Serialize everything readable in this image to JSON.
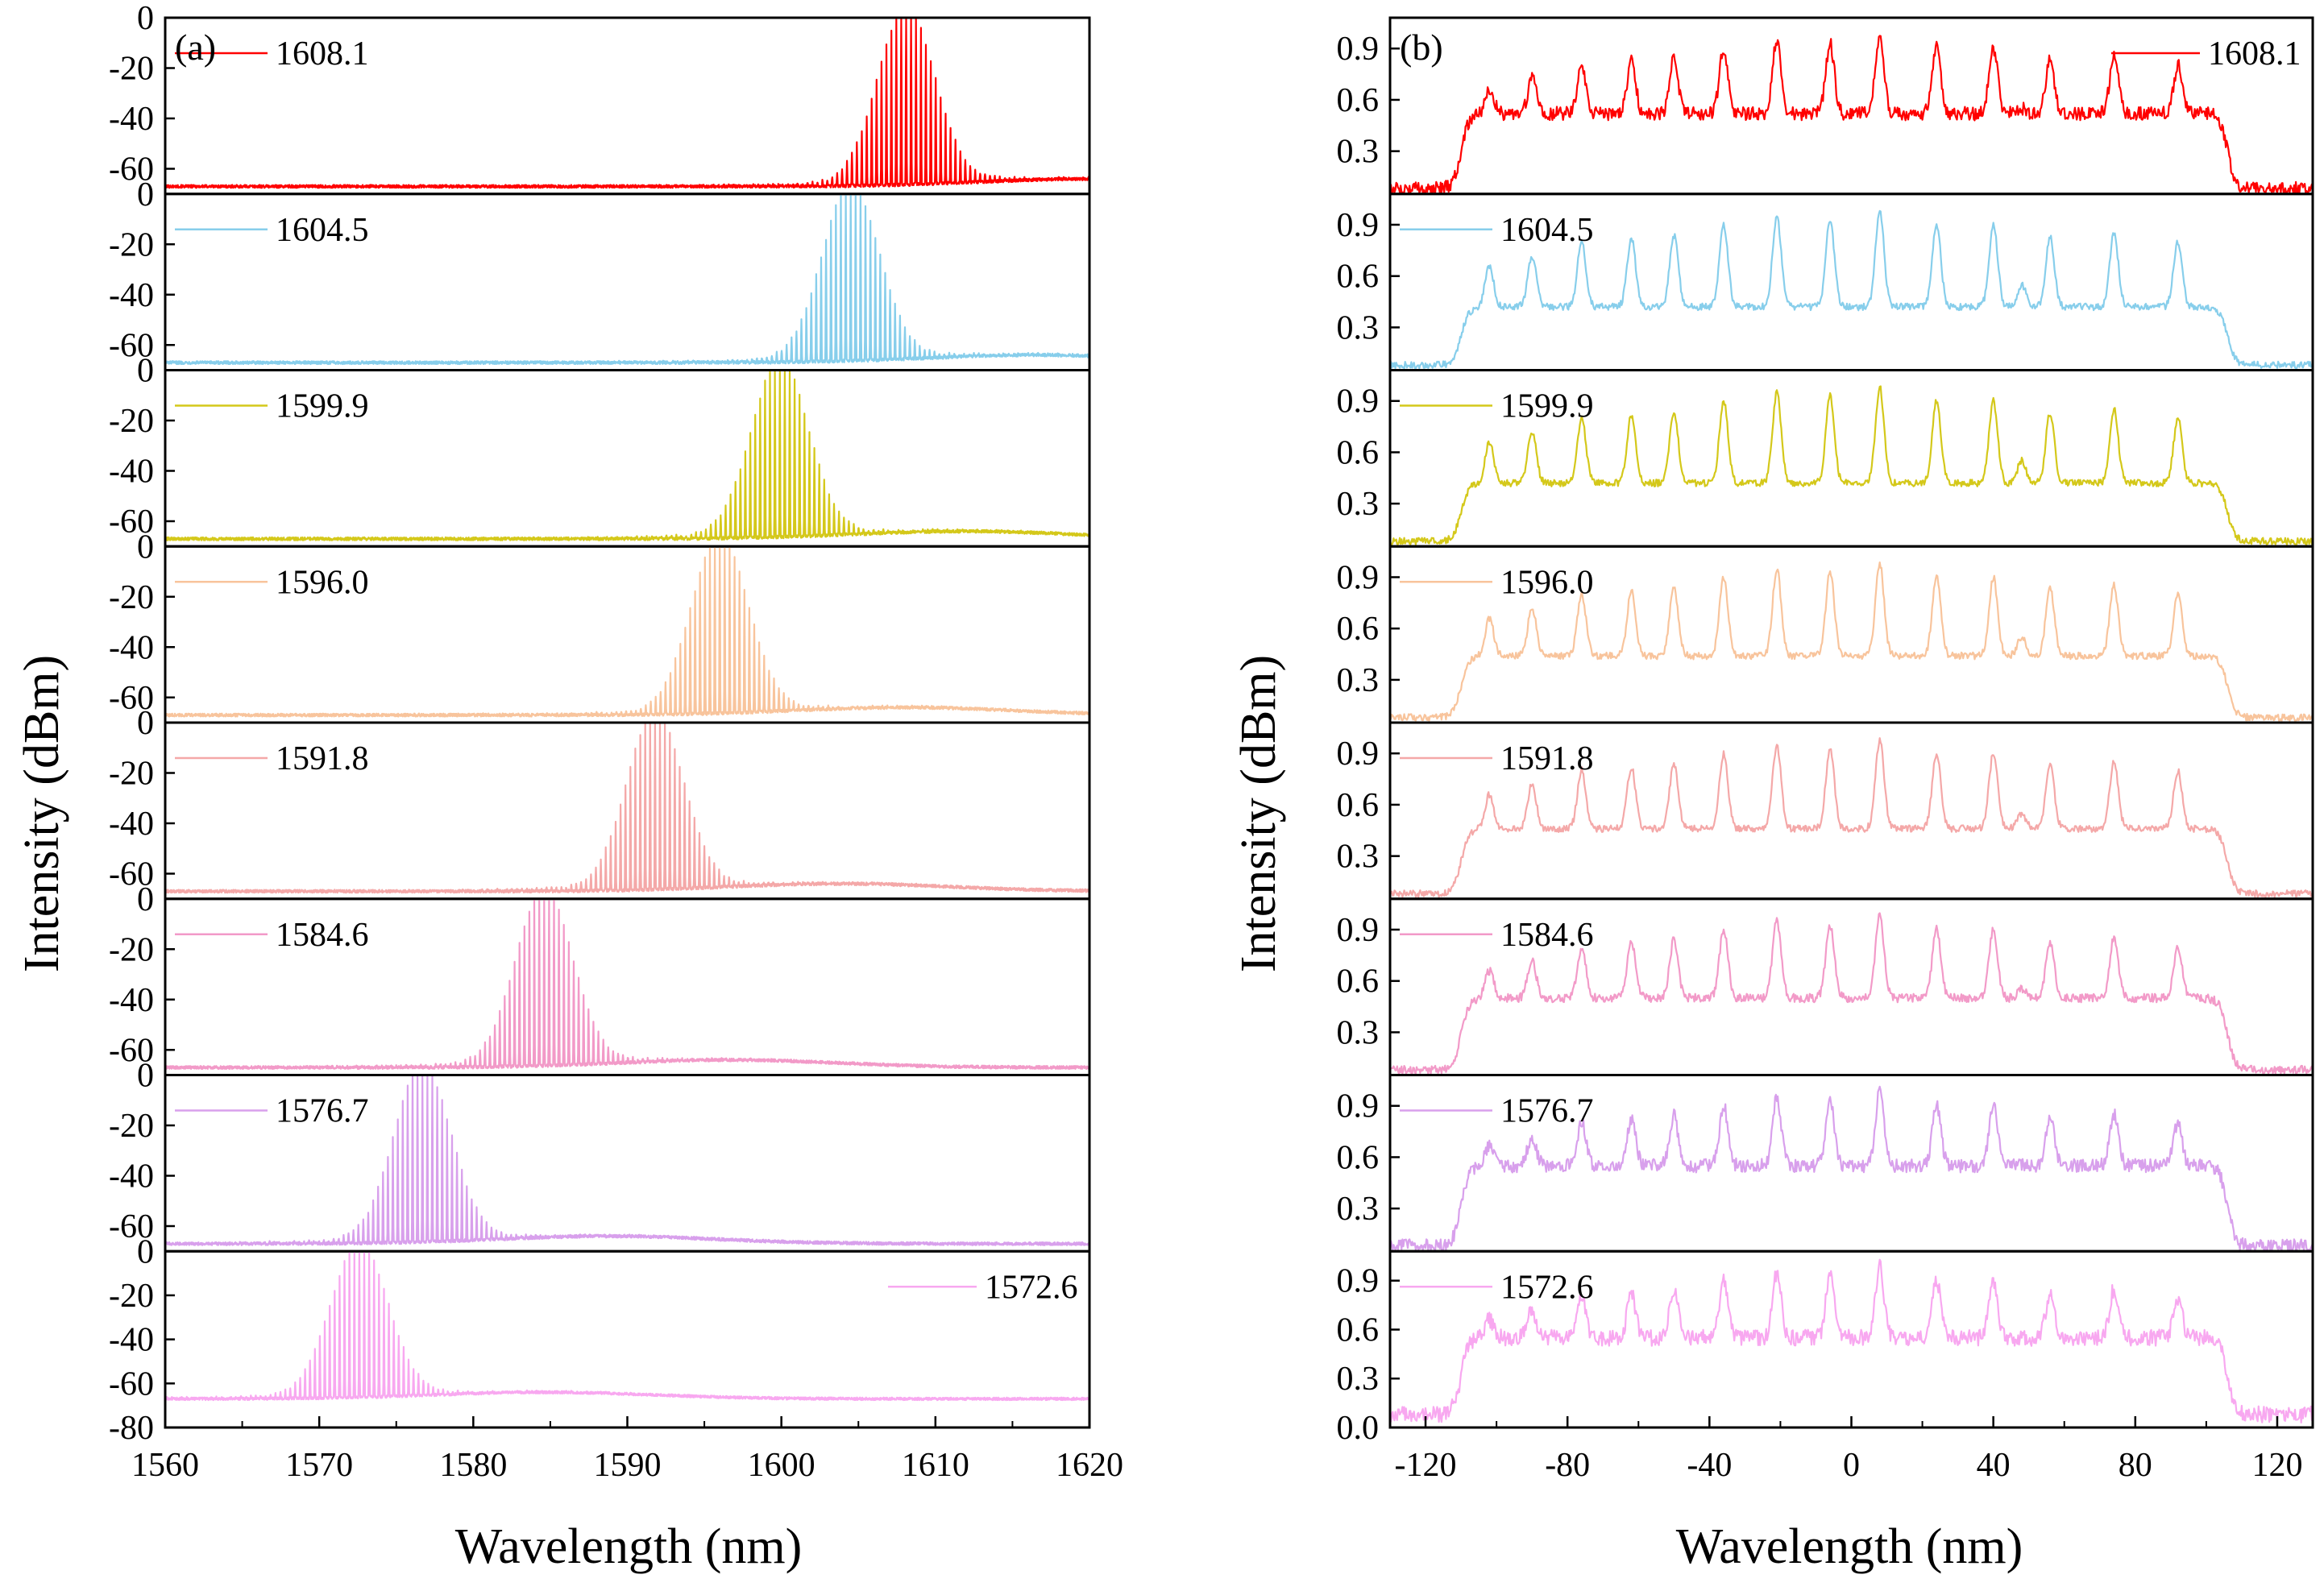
{
  "chart_data": [
    {
      "type": "line",
      "panel_label": "(a)",
      "xlabel": "Wavelength (nm)",
      "ylabel": "Intensity (dBm)",
      "xlim": [
        1560,
        1620
      ],
      "xticks": [
        "1560",
        "1570",
        "1580",
        "1590",
        "1600",
        "1610",
        "1620"
      ],
      "xtick_values": [
        1560,
        1570,
        1580,
        1590,
        1600,
        1610,
        1620
      ],
      "ylim": [
        -70,
        0
      ],
      "bottom_ylim": [
        -80,
        0
      ],
      "yticks": [
        "0",
        "-20",
        "-40",
        "-60"
      ],
      "bottom_yticks": [
        "0",
        "-20",
        "-40",
        "-60",
        "-80"
      ],
      "ytick_values": [
        0,
        -20,
        -40,
        -60
      ],
      "bottom_ytick_values": [
        0,
        -20,
        -40,
        -60,
        -80
      ],
      "comb_spacing_nm": 0.32,
      "envelope_width_nm": 2.6,
      "floor_dbm": -67,
      "series": [
        {
          "name": "1608.1",
          "center": 1608.1,
          "color": "#ff0000",
          "legend_pos": "top-left"
        },
        {
          "name": "1604.5",
          "center": 1604.5,
          "color": "#87ceeb",
          "legend_pos": "top-left"
        },
        {
          "name": "1599.9",
          "center": 1599.9,
          "color": "#d4c81a",
          "legend_pos": "top-left"
        },
        {
          "name": "1596.0",
          "center": 1596.0,
          "color": "#f8c49c",
          "legend_pos": "top-left"
        },
        {
          "name": "1591.8",
          "center": 1591.8,
          "color": "#f4a8a8",
          "legend_pos": "top-left"
        },
        {
          "name": "1584.6",
          "center": 1584.6,
          "color": "#f29ac8",
          "legend_pos": "top-left"
        },
        {
          "name": "1576.7",
          "center": 1576.7,
          "color": "#d8a0ec",
          "legend_pos": "top-left"
        },
        {
          "name": "1572.6",
          "center": 1572.6,
          "color": "#f8a8f0",
          "legend_pos": "top-right"
        }
      ]
    },
    {
      "type": "line",
      "panel_label": "(b)",
      "xlabel": "Wavelength (nm)",
      "ylabel": "Intensity (dBm)",
      "xlim": [
        -130,
        130
      ],
      "xticks": [
        "-120",
        "-80",
        "-40",
        "0",
        "40",
        "80",
        "120"
      ],
      "xtick_values": [
        -120,
        -80,
        -40,
        0,
        40,
        80,
        120
      ],
      "ylim": [
        0.05,
        1.08
      ],
      "bottom_ylim": [
        0,
        1.08
      ],
      "yticks": [
        "0.9",
        "0.6",
        "0.3"
      ],
      "bottom_yticks": [
        "0.9",
        "0.6",
        "0.3",
        "0.0"
      ],
      "ytick_values": [
        0.9,
        0.6,
        0.3
      ],
      "bottom_ytick_values": [
        0.9,
        0.6,
        0.3,
        0.0
      ],
      "peak_positions": [
        -102,
        -90,
        -76,
        -62,
        -50,
        -36,
        -21,
        -6,
        8,
        24,
        40,
        48,
        56,
        74,
        92
      ],
      "peak_heights": [
        0.66,
        0.72,
        0.8,
        0.82,
        0.84,
        0.9,
        0.95,
        0.93,
        0.98,
        0.9,
        0.9,
        0.55,
        0.83,
        0.85,
        0.8
      ],
      "plateau_edges": [
        -110,
        106
      ],
      "series": [
        {
          "name": "1608.1",
          "color": "#ff0000",
          "base": 0.52,
          "noise": 0.04,
          "legend_pos": "top-right"
        },
        {
          "name": "1604.5",
          "color": "#87ceeb",
          "base": 0.42,
          "noise": 0.02,
          "legend_pos": "top-left"
        },
        {
          "name": "1599.9",
          "color": "#d4c81a",
          "base": 0.42,
          "noise": 0.02,
          "legend_pos": "top-left"
        },
        {
          "name": "1596.0",
          "color": "#f8c49c",
          "base": 0.44,
          "noise": 0.02,
          "legend_pos": "top-left"
        },
        {
          "name": "1591.8",
          "color": "#f4a8a8",
          "base": 0.46,
          "noise": 0.02,
          "legend_pos": "top-left"
        },
        {
          "name": "1584.6",
          "color": "#f29ac8",
          "base": 0.5,
          "noise": 0.025,
          "legend_pos": "top-left"
        },
        {
          "name": "1576.7",
          "color": "#d8a0ec",
          "base": 0.55,
          "noise": 0.04,
          "legend_pos": "top-left"
        },
        {
          "name": "1572.6",
          "color": "#f8a8f0",
          "base": 0.55,
          "noise": 0.05,
          "legend_pos": "top-left"
        }
      ]
    }
  ]
}
